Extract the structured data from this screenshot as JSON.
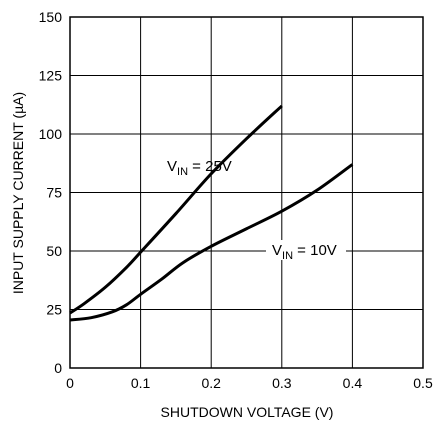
{
  "chart_data": {
    "type": "line",
    "title": "",
    "xlabel": "SHUTDOWN VOLTAGE (V)",
    "ylabel": "INPUT SUPPLY CURRENT (µA)",
    "xlim": [
      0,
      0.5
    ],
    "ylim": [
      0,
      150
    ],
    "x_ticks": [
      "0",
      "0.1",
      "0.2",
      "0.3",
      "0.4",
      "0.5"
    ],
    "y_ticks": [
      "0",
      "25",
      "50",
      "75",
      "100",
      "125",
      "150"
    ],
    "grid": true,
    "series": [
      {
        "label_main": "V",
        "label_sub": "IN",
        "label_rest": " = 25V",
        "x": [
          0,
          0.02,
          0.05,
          0.08,
          0.1,
          0.15,
          0.2,
          0.25,
          0.3
        ],
        "y": [
          23.5,
          27.5,
          34.5,
          43,
          49.5,
          66,
          83,
          98,
          112
        ]
      },
      {
        "label_main": "V",
        "label_sub": "IN",
        "label_rest": " = 10V",
        "x": [
          0,
          0.03,
          0.06,
          0.08,
          0.1,
          0.13,
          0.16,
          0.2,
          0.25,
          0.3,
          0.35,
          0.4
        ],
        "y": [
          20.5,
          21.5,
          24,
          27,
          31.5,
          38,
          45,
          52,
          59.5,
          67,
          76,
          87
        ]
      }
    ]
  }
}
